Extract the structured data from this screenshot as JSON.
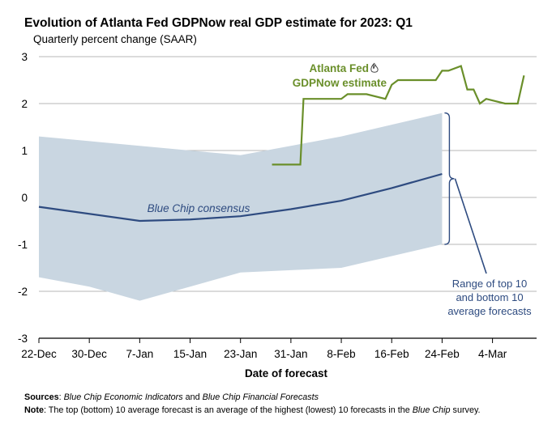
{
  "chart_data": {
    "type": "line",
    "title": "Evolution of Atlanta Fed GDPNow real GDP estimate for 2023: Q1",
    "subtitle": "Quarterly percent change (SAAR)",
    "xlabel": "Date of forecast",
    "ylabel": "",
    "ylim": [
      -3,
      3
    ],
    "yticks": [
      3,
      2,
      1,
      0,
      -1,
      -2,
      -3
    ],
    "xlim": [
      0,
      79
    ],
    "x_axis_unit": "days since 22-Dec",
    "xticks": [
      {
        "label": "22-Dec",
        "day": 0
      },
      {
        "label": "30-Dec",
        "day": 8
      },
      {
        "label": "7-Jan",
        "day": 16
      },
      {
        "label": "15-Jan",
        "day": 24
      },
      {
        "label": "23-Jan",
        "day": 32
      },
      {
        "label": "31-Jan",
        "day": 40
      },
      {
        "label": "8-Feb",
        "day": 48
      },
      {
        "label": "16-Feb",
        "day": 56
      },
      {
        "label": "24-Feb",
        "day": 64
      },
      {
        "label": "4-Mar",
        "day": 72
      }
    ],
    "grid": true,
    "colors": {
      "blue_chip": "#2e4b80",
      "gdpnow": "#6a8f2a",
      "range_band": "#c9d6e1",
      "annotation": "#2e4b80",
      "grid": "#b7b7b7"
    },
    "range_band": {
      "name": "Range of top 10 and bottom 10 average forecasts",
      "upper": [
        [
          0,
          1.3
        ],
        [
          8,
          1.2
        ],
        [
          16,
          1.1
        ],
        [
          24,
          1.0
        ],
        [
          32,
          0.9
        ],
        [
          40,
          1.1
        ],
        [
          48,
          1.3
        ],
        [
          56,
          1.55
        ],
        [
          64,
          1.8
        ]
      ],
      "lower": [
        [
          0,
          -1.7
        ],
        [
          8,
          -1.9
        ],
        [
          16,
          -2.2
        ],
        [
          24,
          -1.9
        ],
        [
          32,
          -1.6
        ],
        [
          40,
          -1.55
        ],
        [
          48,
          -1.5
        ],
        [
          56,
          -1.25
        ],
        [
          64,
          -1.0
        ]
      ]
    },
    "series": [
      {
        "name": "Blue Chip consensus",
        "values": [
          [
            0,
            -0.2
          ],
          [
            16,
            -0.5
          ],
          [
            24,
            -0.47
          ],
          [
            32,
            -0.4
          ],
          [
            40,
            -0.25
          ],
          [
            48,
            -0.07
          ],
          [
            56,
            0.2
          ],
          [
            64,
            0.5
          ]
        ]
      },
      {
        "name": "Atlanta Fed GDPNow estimate",
        "values": [
          [
            37,
            0.7
          ],
          [
            41.5,
            0.7
          ],
          [
            42,
            2.1
          ],
          [
            48,
            2.1
          ],
          [
            49,
            2.2
          ],
          [
            52,
            2.2
          ],
          [
            55,
            2.1
          ],
          [
            56,
            2.4
          ],
          [
            57,
            2.5
          ],
          [
            63,
            2.5
          ],
          [
            64,
            2.7
          ],
          [
            65,
            2.7
          ],
          [
            67,
            2.8
          ],
          [
            68,
            2.3
          ],
          [
            69,
            2.3
          ],
          [
            70,
            2.0
          ],
          [
            71,
            2.1
          ],
          [
            74,
            2.0
          ],
          [
            76,
            2.0
          ],
          [
            77,
            2.6
          ]
        ]
      }
    ],
    "annotations": {
      "blue_chip_label": "Blue Chip consensus",
      "gdpnow_label_line1": "Atlanta Fed",
      "gdpnow_label_line2": "GDPNow estimate",
      "range_label_line1": "Range of top 10",
      "range_label_line2": "and bottom 10",
      "range_label_line3": "average forecasts"
    }
  },
  "footer": {
    "sources_label": "Sources",
    "sources_part1": "Blue Chip Economic Indicators",
    "sources_and": " and ",
    "sources_part2": "Blue Chip Financial Forecasts",
    "note_label": "Note",
    "note_text_1": ": The top (bottom) 10 average forecast is an average of the highest (lowest) 10 forecasts in the ",
    "note_italic": "Blue Chip",
    "note_text_2": " survey."
  }
}
